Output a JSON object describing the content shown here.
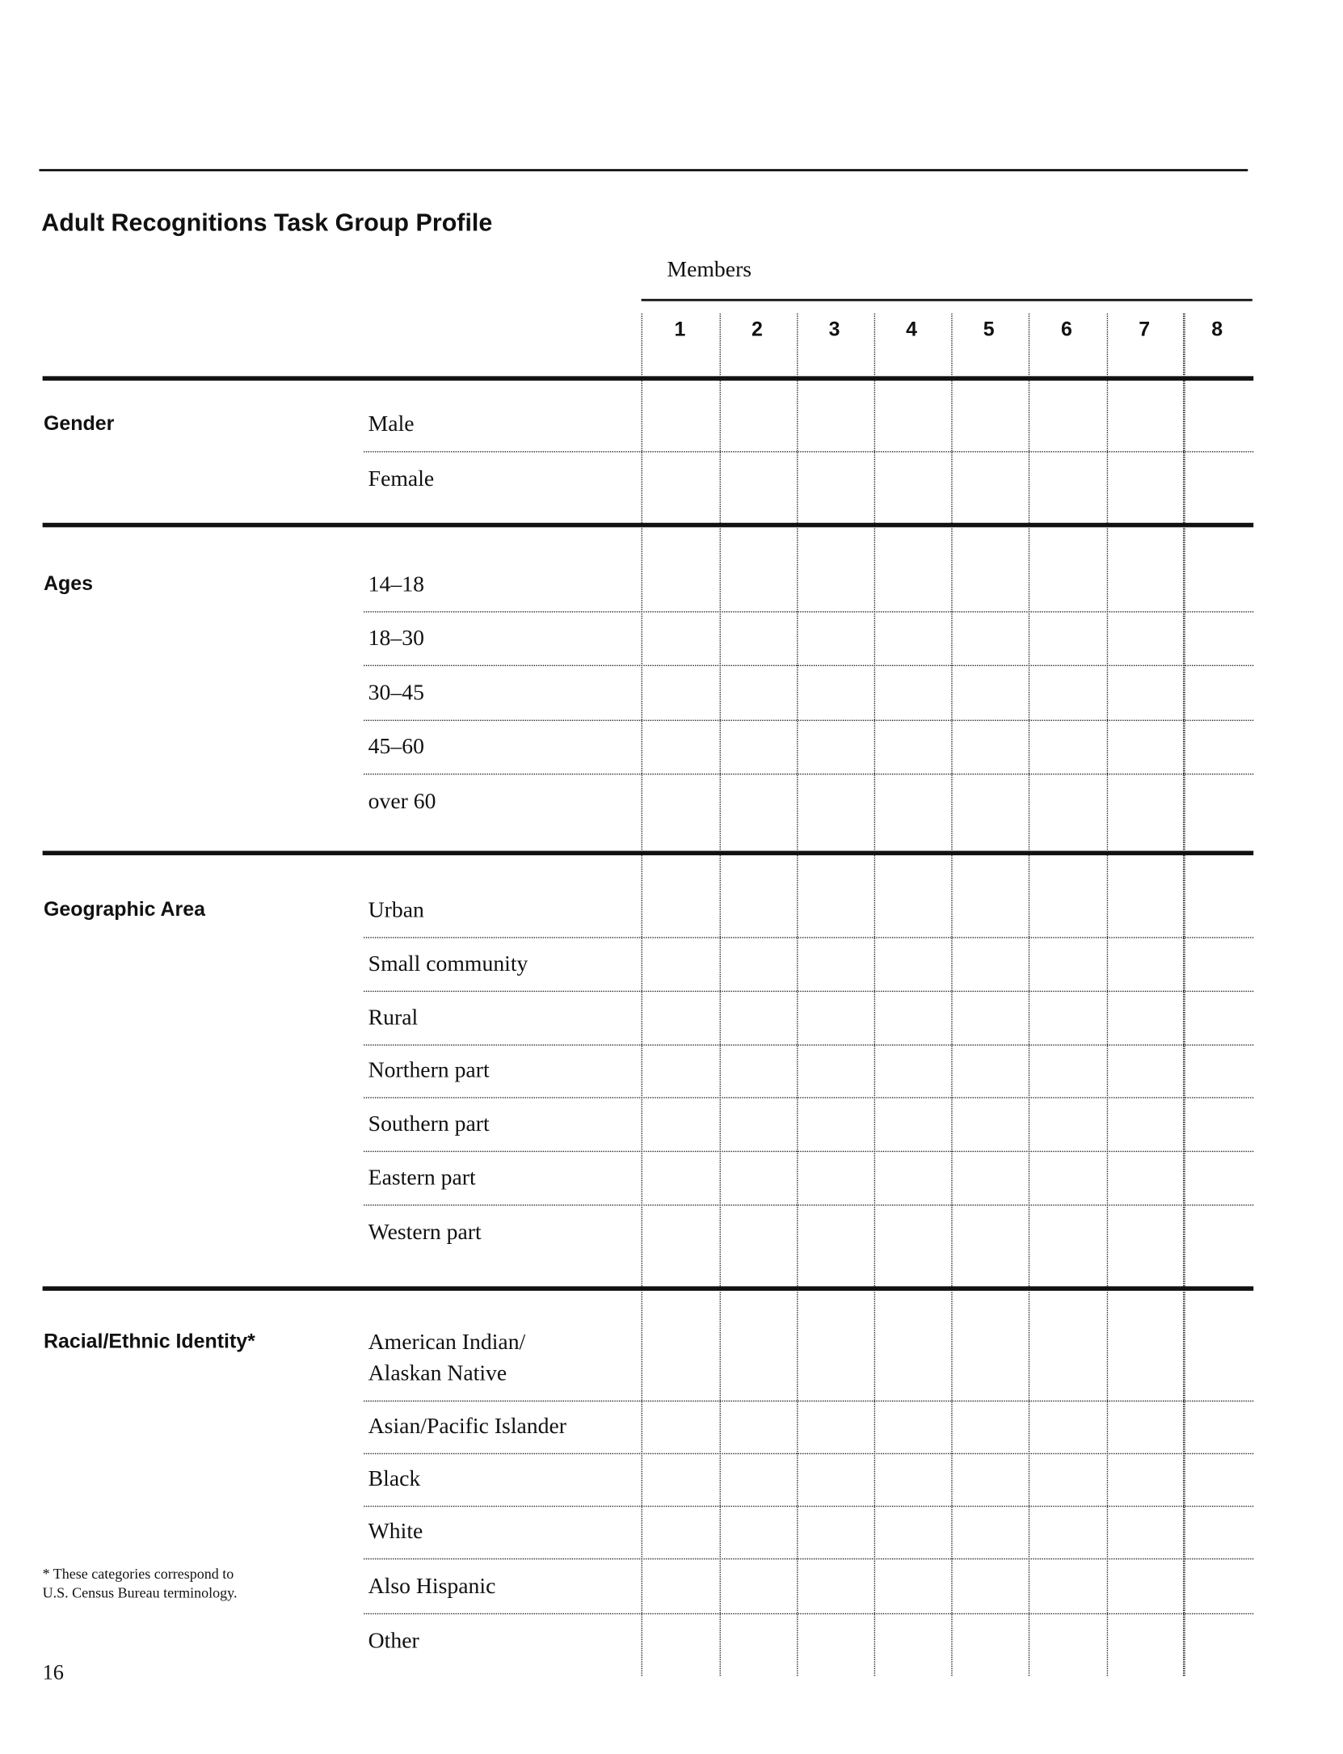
{
  "title": "Adult Recognitions Task Group Profile",
  "members_label": "Members",
  "members": [
    "1",
    "2",
    "3",
    "4",
    "5",
    "6",
    "7",
    "8"
  ],
  "sections": [
    {
      "label": "Gender",
      "rows": [
        "Male",
        "Female"
      ]
    },
    {
      "label": "Ages",
      "rows": [
        "14–18",
        "18–30",
        "30–45",
        "45–60",
        "over 60"
      ]
    },
    {
      "label": "Geographic Area",
      "rows": [
        "Urban",
        "Small community",
        "Rural",
        "Northern part",
        "Southern part",
        "Eastern part",
        "Western part"
      ]
    },
    {
      "label": "Racial/Ethnic Identity*",
      "rows": [
        "American Indian/\nAlaskan Native",
        "Asian/Pacific Islander",
        "Black",
        "White",
        "Also Hispanic",
        "Other"
      ]
    }
  ],
  "footnote": "* These categories correspond to\nU.S. Census Bureau terminology.",
  "page_number": "16"
}
